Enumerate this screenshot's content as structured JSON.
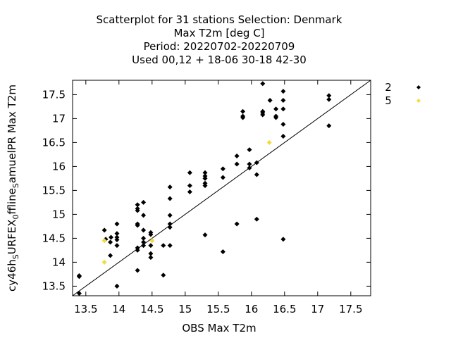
{
  "chart_data": {
    "type": "scatter",
    "title_lines": [
      "Scatterplot for   31 stations Selection: Denmark",
      "Max T2m [deg C]",
      "Period: 20220702-20220709",
      "Used  00,12  + 18-06 30-18 42-30"
    ],
    "xlabel": "OBS Max T2m",
    "ylabel_main": "cy46h",
    "ylabel_sub1": "S",
    "ylabel_mid": "URFEX",
    "ylabel_sub2": "0",
    "ylabel_tail": "ffline",
    "ylabel_sub3": "S",
    "ylabel_end": "amuelPR Max T2m",
    "xlim": [
      13.3,
      17.8
    ],
    "ylim": [
      13.3,
      17.8
    ],
    "xticks": [
      "13.5",
      "14",
      "14.5",
      "15",
      "15.5",
      "16",
      "16.5",
      "17",
      "17.5"
    ],
    "yticks": [
      "13.5",
      "14",
      "14.5",
      "15",
      "15.5",
      "16",
      "16.5",
      "17",
      "17.5"
    ],
    "grid": false,
    "legend_position": "outside-right",
    "reference_line": "y = x",
    "series": [
      {
        "name": "2",
        "color": "#000000",
        "marker": "diamond",
        "points": [
          [
            13.4,
            13.7
          ],
          [
            13.4,
            13.72
          ],
          [
            13.4,
            13.35
          ],
          [
            13.78,
            14.67
          ],
          [
            13.8,
            14.48
          ],
          [
            13.87,
            14.42
          ],
          [
            13.88,
            14.52
          ],
          [
            13.87,
            14.14
          ],
          [
            13.97,
            14.8
          ],
          [
            13.97,
            14.6
          ],
          [
            13.97,
            14.52
          ],
          [
            13.97,
            14.47
          ],
          [
            13.97,
            14.35
          ],
          [
            13.97,
            13.5
          ],
          [
            14.28,
            15.2
          ],
          [
            14.28,
            15.12
          ],
          [
            14.28,
            15.08
          ],
          [
            14.28,
            14.8
          ],
          [
            14.28,
            14.77
          ],
          [
            14.28,
            14.3
          ],
          [
            14.28,
            14.25
          ],
          [
            14.28,
            13.83
          ],
          [
            14.37,
            15.25
          ],
          [
            14.37,
            14.98
          ],
          [
            14.37,
            14.67
          ],
          [
            14.37,
            14.5
          ],
          [
            14.37,
            14.42
          ],
          [
            14.37,
            14.35
          ],
          [
            14.48,
            14.62
          ],
          [
            14.48,
            14.58
          ],
          [
            14.48,
            14.35
          ],
          [
            14.48,
            14.18
          ],
          [
            14.48,
            14.1
          ],
          [
            14.67,
            14.35
          ],
          [
            14.67,
            13.73
          ],
          [
            14.77,
            15.57
          ],
          [
            14.77,
            15.33
          ],
          [
            14.77,
            14.98
          ],
          [
            14.77,
            14.8
          ],
          [
            14.77,
            14.73
          ],
          [
            14.77,
            14.35
          ],
          [
            15.07,
            15.87
          ],
          [
            15.07,
            15.6
          ],
          [
            15.07,
            15.47
          ],
          [
            15.3,
            15.87
          ],
          [
            15.3,
            15.8
          ],
          [
            15.3,
            15.75
          ],
          [
            15.3,
            15.65
          ],
          [
            15.3,
            15.6
          ],
          [
            15.3,
            14.57
          ],
          [
            15.57,
            15.95
          ],
          [
            15.57,
            15.77
          ],
          [
            15.57,
            14.22
          ],
          [
            15.78,
            16.22
          ],
          [
            15.78,
            16.05
          ],
          [
            15.78,
            14.8
          ],
          [
            15.87,
            17.15
          ],
          [
            15.87,
            17.05
          ],
          [
            15.87,
            17.02
          ],
          [
            15.97,
            16.35
          ],
          [
            15.97,
            16.05
          ],
          [
            15.97,
            15.97
          ],
          [
            16.08,
            16.08
          ],
          [
            16.08,
            15.83
          ],
          [
            16.08,
            14.9
          ],
          [
            16.17,
            17.73
          ],
          [
            16.17,
            17.15
          ],
          [
            16.17,
            17.12
          ],
          [
            16.17,
            17.08
          ],
          [
            16.28,
            17.38
          ],
          [
            16.37,
            17.2
          ],
          [
            16.37,
            17.05
          ],
          [
            16.37,
            17.02
          ],
          [
            16.48,
            17.57
          ],
          [
            16.48,
            17.38
          ],
          [
            16.48,
            17.2
          ],
          [
            16.48,
            16.88
          ],
          [
            16.48,
            16.63
          ],
          [
            16.48,
            14.48
          ],
          [
            17.17,
            17.48
          ],
          [
            17.17,
            17.4
          ],
          [
            17.17,
            16.85
          ]
        ]
      },
      {
        "name": "5",
        "color": "#f0dc40",
        "marker": "diamond",
        "points": [
          [
            13.78,
            14.45
          ],
          [
            13.78,
            14.0
          ],
          [
            14.5,
            14.45
          ],
          [
            16.27,
            16.5
          ]
        ]
      }
    ]
  }
}
